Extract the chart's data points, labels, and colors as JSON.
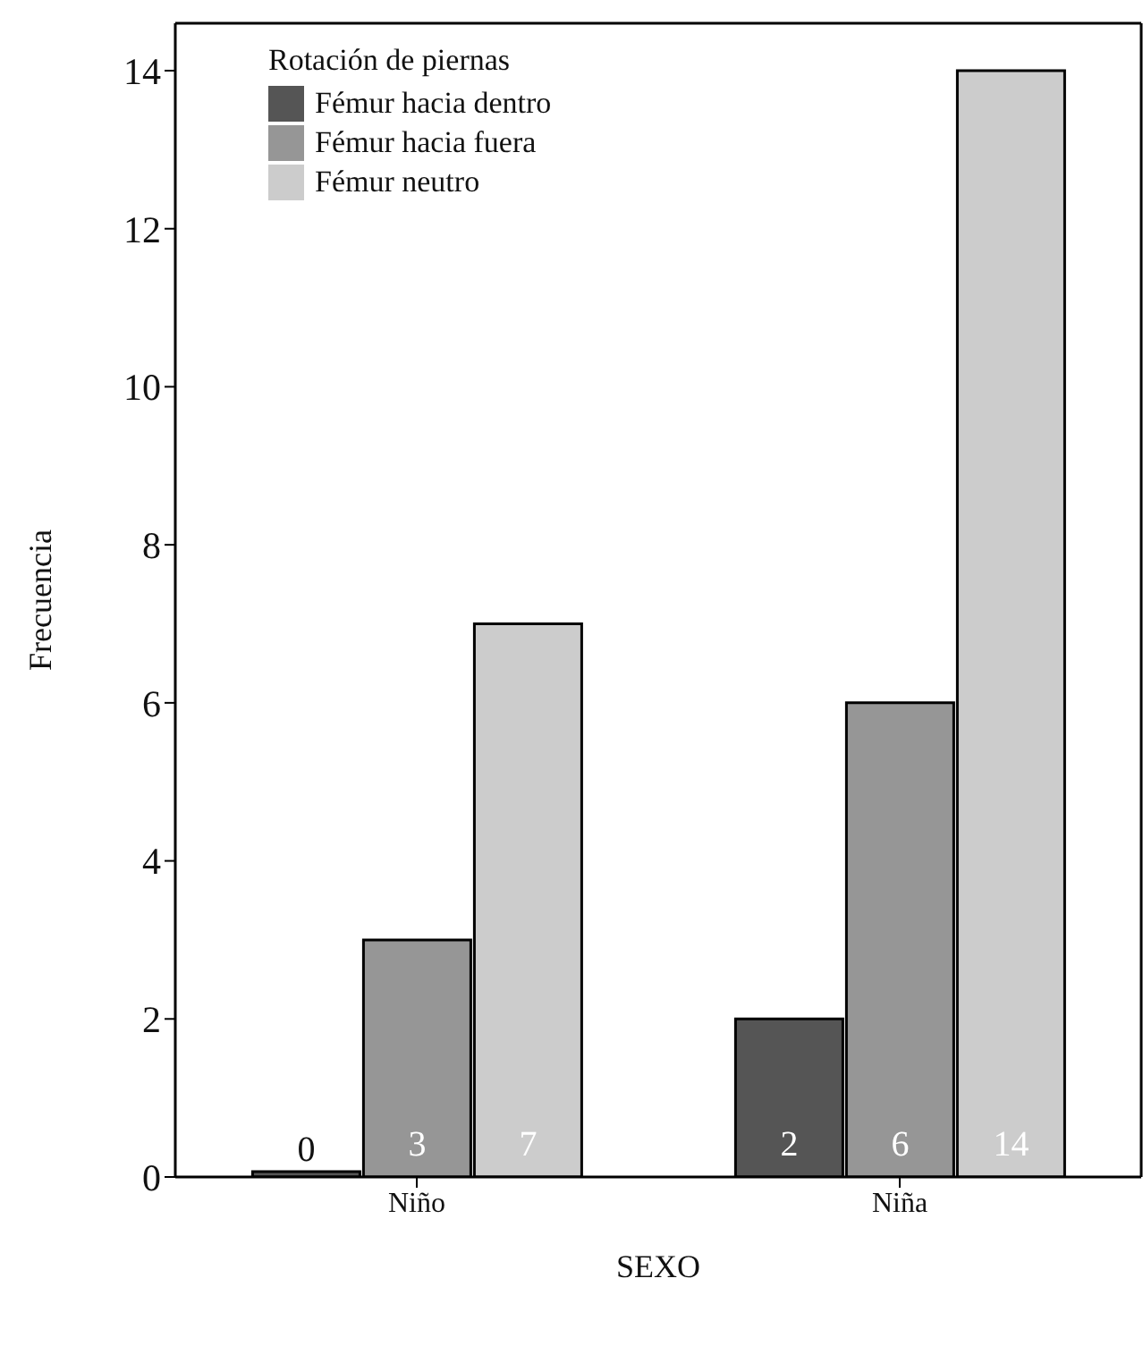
{
  "chart_data": {
    "type": "bar",
    "xlabel": "SEXO",
    "ylabel": "Frecuencia",
    "legend_title": "Rotación de piernas",
    "categories": [
      "Niño",
      "Niña"
    ],
    "series": [
      {
        "name": "Fémur hacia dentro",
        "color": "#555555",
        "values": [
          0,
          2
        ]
      },
      {
        "name": "Fémur hacia fuera",
        "color": "#969696",
        "values": [
          3,
          6
        ]
      },
      {
        "name": "Fémur neutro",
        "color": "#cccccc",
        "values": [
          7,
          14
        ]
      }
    ],
    "ylim": [
      0,
      14.6
    ],
    "yticks": [
      0,
      2,
      4,
      6,
      8,
      10,
      12,
      14
    ],
    "data_labels": true,
    "legend": "top left",
    "grid": false
  }
}
